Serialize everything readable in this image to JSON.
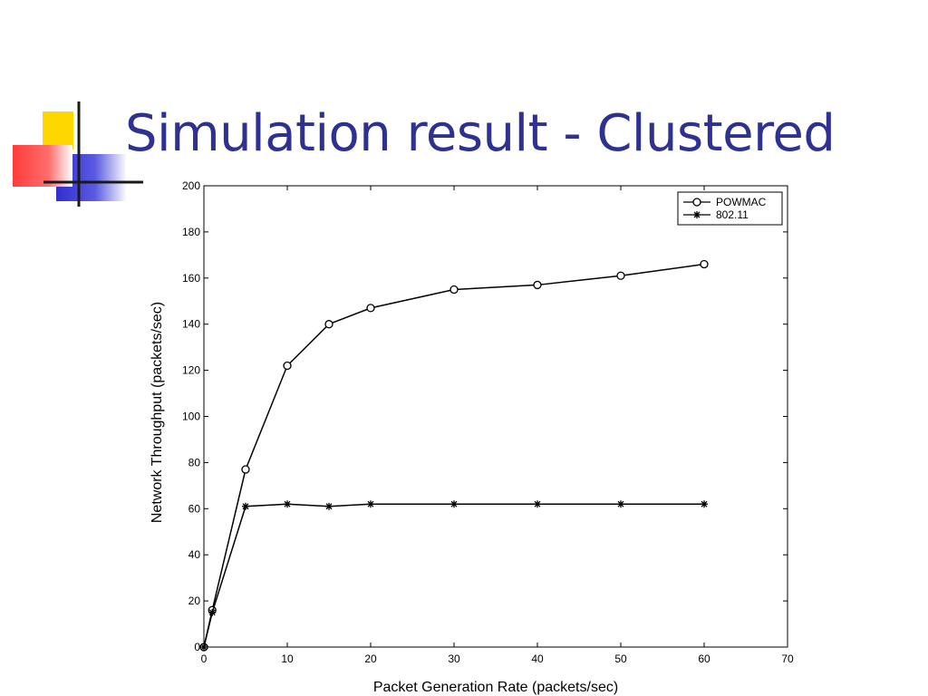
{
  "slide": {
    "title": "Simulation result - Clustered"
  },
  "colors": {
    "title": "#2e3192",
    "decoration_yellow": "#ffd700",
    "decoration_red": "#ff2a2a",
    "decoration_blue": "#3333cc",
    "axes": "#000000"
  },
  "chart_data": {
    "type": "line",
    "title": "",
    "xlabel": "Packet Generation Rate (packets/sec)",
    "ylabel": "Network Throughput (packets/sec)",
    "xlim": [
      0,
      70
    ],
    "ylim": [
      0,
      200
    ],
    "x_ticks": [
      0,
      10,
      20,
      30,
      40,
      50,
      60,
      70
    ],
    "y_ticks": [
      0,
      20,
      40,
      60,
      80,
      100,
      120,
      140,
      160,
      180,
      200
    ],
    "grid": false,
    "legend_position": "top-right",
    "series": [
      {
        "name": "POWMAC",
        "marker": "circle",
        "color": "#000000",
        "x": [
          0,
          1,
          5,
          10,
          15,
          20,
          30,
          40,
          50,
          60
        ],
        "y": [
          0,
          16,
          77,
          122,
          140,
          147,
          155,
          157,
          161,
          166
        ]
      },
      {
        "name": "802.11",
        "marker": "star",
        "color": "#000000",
        "x": [
          0,
          1,
          5,
          10,
          15,
          20,
          30,
          40,
          50,
          60
        ],
        "y": [
          0,
          15,
          61,
          62,
          61,
          62,
          62,
          62,
          62,
          62
        ]
      }
    ]
  }
}
